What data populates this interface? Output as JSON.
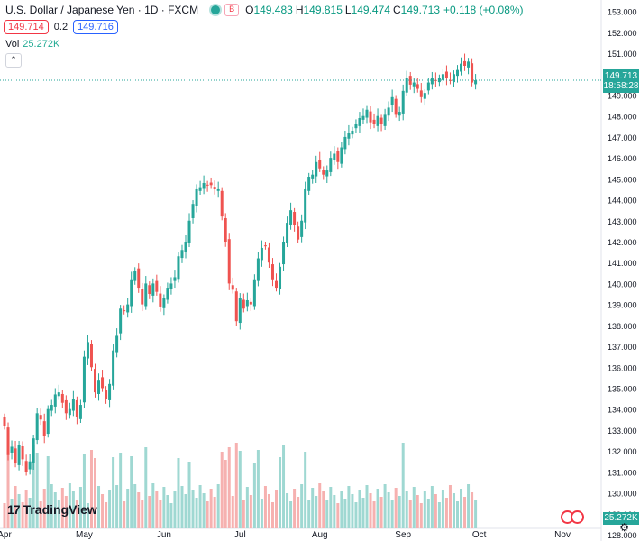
{
  "header": {
    "title": "U.S. Dollar / Japanese Yen · 1D · FXCM",
    "open_label": "O",
    "open": "149.483",
    "high_label": "H",
    "high": "149.815",
    "low_label": "L",
    "low": "149.474",
    "close_label": "C",
    "close": "149.713",
    "change": "+0.118 (+0.08%)",
    "badge": "B"
  },
  "quote": {
    "sell": "149.714",
    "spread": "0.2",
    "buy": "149.716"
  },
  "volume": {
    "label": "Vol",
    "value": "25.272K"
  },
  "price_tag": {
    "price": "149.713",
    "countdown": "18:58:28"
  },
  "volume_tag": "25.272K",
  "brand": {
    "name": "TradingView",
    "mark": "17"
  },
  "colors": {
    "up": "#26a69a",
    "down": "#ef5350",
    "vol_up": "#9fd8d2",
    "vol_down": "#f6b1b0"
  },
  "chart_data": {
    "type": "candlestick",
    "ylim": [
      128.3,
      153.2
    ],
    "yticks": [
      153,
      152,
      151,
      150,
      149,
      148,
      147,
      146,
      145,
      144,
      143,
      142,
      141,
      140,
      139,
      138,
      137,
      136,
      135,
      134,
      133,
      132,
      131,
      130,
      129,
      128
    ],
    "xtick_labels": [
      "Apr",
      "May",
      "Jun",
      "Jul",
      "Aug",
      "Sep",
      "Oct",
      "Nov"
    ],
    "xtick_index": [
      0,
      22,
      44,
      65,
      87,
      110,
      131,
      154
    ],
    "last_price": 149.713,
    "close": [
      133.2,
      131.8,
      132.2,
      131.4,
      132.3,
      131.6,
      131.0,
      131.5,
      132.6,
      133.8,
      133.5,
      132.7,
      134.0,
      134.2,
      134.7,
      134.8,
      134.3,
      133.8,
      134.0,
      134.5,
      133.6,
      134.2,
      136.5,
      137.2,
      136.0,
      134.8,
      135.4,
      135.0,
      134.5,
      135.2,
      136.8,
      137.5,
      138.8,
      138.7,
      139.0,
      140.2,
      140.6,
      139.8,
      139.0,
      140.0,
      139.5,
      140.0,
      139.6,
      138.9,
      139.3,
      139.8,
      140.0,
      140.3,
      141.3,
      141.6,
      142.0,
      143.0,
      143.8,
      144.5,
      144.6,
      144.8,
      144.7,
      144.7,
      144.5,
      144.5,
      143.2,
      142.0,
      140.0,
      139.7,
      138.2,
      139.3,
      138.8,
      139.2,
      139.0,
      140.2,
      141.2,
      141.7,
      141.8,
      141.0,
      140.2,
      139.8,
      140.8,
      142.0,
      142.9,
      143.5,
      142.8,
      142.1,
      143.0,
      144.5,
      145.1,
      145.2,
      145.8,
      145.5,
      145.2,
      145.4,
      146.0,
      146.2,
      145.8,
      146.5,
      147.0,
      147.2,
      147.3,
      147.6,
      147.9,
      148.0,
      148.3,
      147.7,
      147.6,
      148.0,
      147.6,
      148.1,
      148.4,
      148.9,
      148.1,
      148.2,
      149.2,
      149.8,
      149.5,
      149.6,
      149.3,
      148.9,
      149.1,
      149.6,
      149.8,
      149.7,
      149.8,
      150.0,
      149.8,
      149.7,
      150.0,
      150.2,
      150.5,
      150.4,
      150.6,
      149.6,
      149.71
    ]
  }
}
